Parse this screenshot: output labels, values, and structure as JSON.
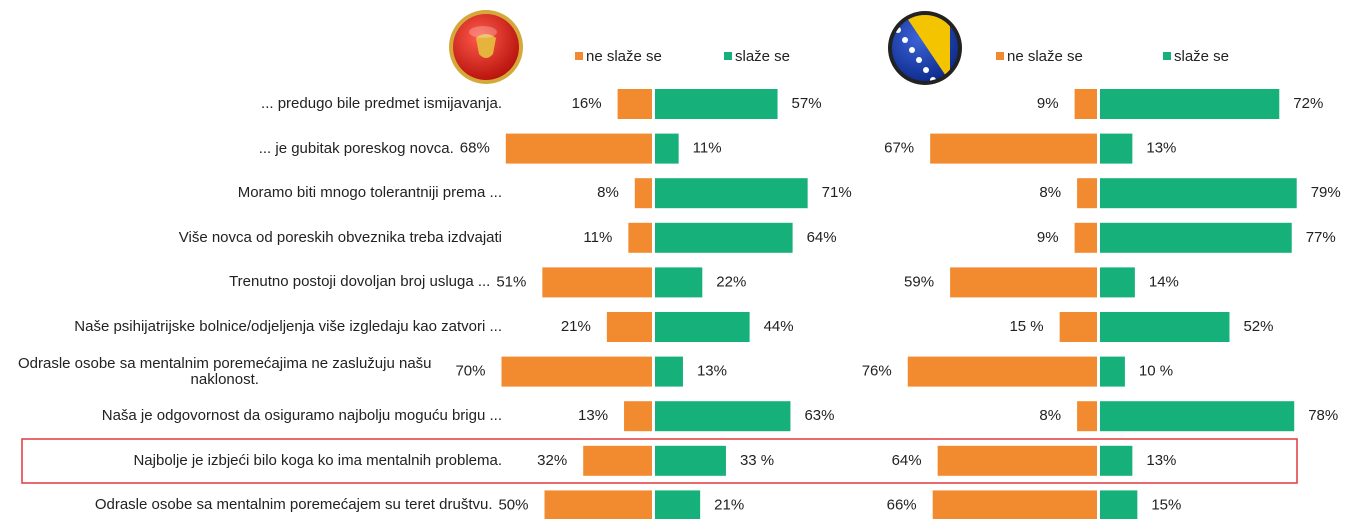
{
  "chart_data": {
    "type": "diverging_bar",
    "categories": [
      "... predugo bile predmet ismijavanja.",
      "... je gubitak poreskog novca.",
      "Moramo biti mnogo tolerantniji prema ...",
      "Više novca od poreskih obveznika treba izdvajati",
      "Trenutno postoji dovoljan broj usluga ...",
      "Naše psihijatrijske bolnice/odjeljenja više izgledaju kao zatvori ...",
      "Odrasle osobe sa mentalnim poremećajima ne zaslužuju našu naklonost.",
      "Naša je odgovornost da osiguramo najbolju moguću brigu ...",
      "Najbolje je izbjeći bilo koga ko ima mentalnih problema.",
      "Odrasle osobe sa mentalnim poremećajem su teret društvu."
    ],
    "panels": [
      {
        "series": [
          {
            "name": "ne slaže se",
            "color": "#f28b30",
            "values": [
              16,
              68,
              8,
              11,
              51,
              21,
              70,
              13,
              32,
              50
            ],
            "value_labels": [
              "16%",
              "68%",
              "8%",
              "11%",
              "51%",
              "21%",
              "70%",
              "13%",
              "32%",
              "50%"
            ]
          },
          {
            "name": "slaže se",
            "color": "#16b07a",
            "values": [
              57,
              11,
              71,
              64,
              22,
              44,
              13,
              63,
              33,
              21
            ],
            "value_labels": [
              "57%",
              "11%",
              "71%",
              "64%",
              "22%",
              "44%",
              "13%",
              "63%",
              "33 %",
              "21%"
            ]
          }
        ]
      },
      {
        "series": [
          {
            "name": "ne slaže se",
            "color": "#f28b30",
            "values": [
              9,
              67,
              8,
              9,
              59,
              15,
              76,
              8,
              64,
              66
            ],
            "value_labels": [
              "9%",
              "67%",
              "8%",
              "9%",
              "59%",
              "15 %",
              "76%",
              "8%",
              "64%",
              "66%"
            ]
          },
          {
            "name": "slaže se",
            "color": "#16b07a",
            "values": [
              72,
              13,
              79,
              77,
              14,
              52,
              10,
              78,
              13,
              15
            ],
            "value_labels": [
              "72%",
              "13%",
              "79%",
              "77%",
              "14%",
              "52%",
              "10 %",
              "78%",
              "13%",
              "15%"
            ]
          }
        ]
      }
    ]
  }
}
